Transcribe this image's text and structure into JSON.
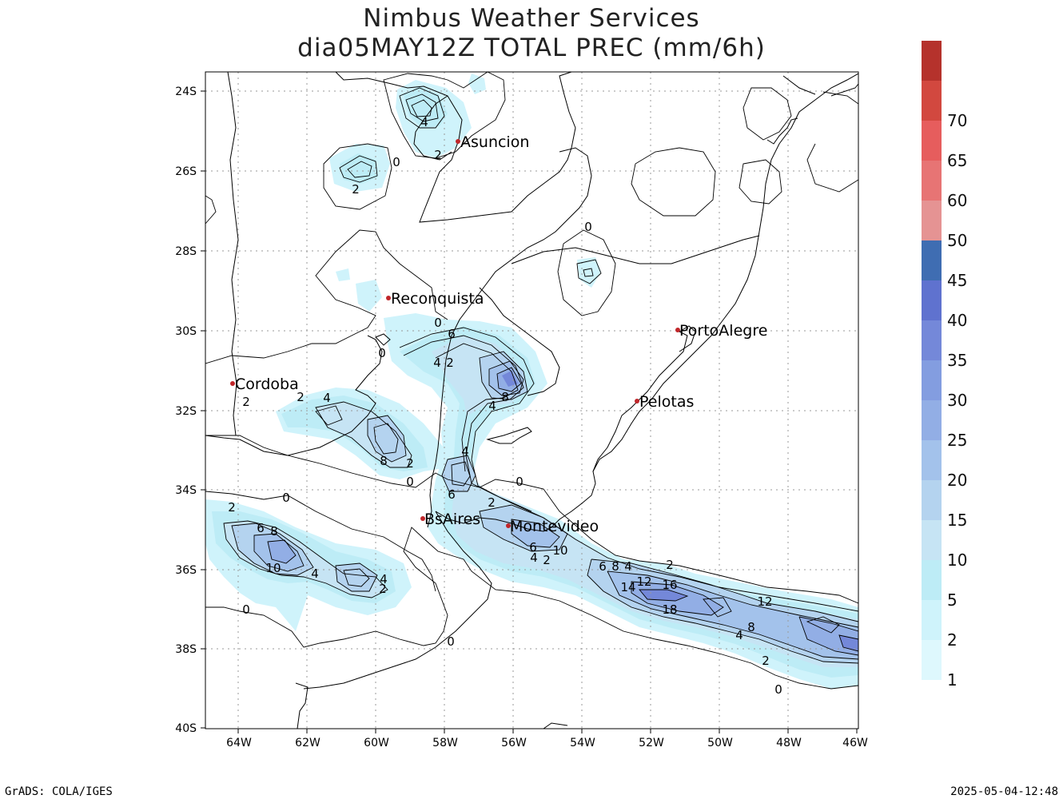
{
  "title": {
    "line1": "Nimbus Weather Services",
    "line2": "dia05MAY12Z TOTAL PREC (mm/6h)"
  },
  "map": {
    "lon_range": [
      -65,
      -46
    ],
    "lat_range": [
      -40,
      -23.6
    ],
    "x_ticks": [
      "64W",
      "62W",
      "60W",
      "58W",
      "56W",
      "54W",
      "52W",
      "50W",
      "48W",
      "46W"
    ],
    "y_ticks": [
      "24S",
      "26S",
      "28S",
      "30S",
      "32S",
      "34S",
      "36S",
      "38S",
      "40S"
    ],
    "grid": true
  },
  "cities": [
    {
      "name": "Asuncion",
      "lon": -57.6,
      "lat": -25.3
    },
    {
      "name": "Reconquista",
      "lon": -59.7,
      "lat": -29.15
    },
    {
      "name": "PortoAlegre",
      "lon": -51.2,
      "lat": -30.0
    },
    {
      "name": "Cordoba",
      "lon": -64.2,
      "lat": -31.35
    },
    {
      "name": "Pelotas",
      "lon": -52.35,
      "lat": -31.75
    },
    {
      "name": "BsAires",
      "lon": -58.5,
      "lat": -34.7
    },
    {
      "name": "Montevideo",
      "lon": -56.2,
      "lat": -34.9
    }
  ],
  "contour_labels": [
    "4",
    "2",
    "0",
    "2",
    "0",
    "6",
    "4",
    "2",
    "0",
    "8",
    "4",
    "2",
    "4",
    "2",
    "8",
    "2",
    "0",
    "4",
    "6",
    "2",
    "0",
    "2",
    "0",
    "6",
    "8",
    "10",
    "4",
    "4",
    "2",
    "0",
    "6",
    "4",
    "2",
    "10",
    "6",
    "8",
    "4",
    "12",
    "14",
    "16",
    "18",
    "2",
    "12",
    "8",
    "4",
    "2",
    "0",
    "0",
    "0"
  ],
  "colorbar": {
    "labels": [
      "1",
      "2",
      "5",
      "10",
      "15",
      "20",
      "25",
      "30",
      "35",
      "40",
      "45",
      "50",
      "60",
      "65",
      "70"
    ],
    "colors": [
      "#def8fd",
      "#cff3fb",
      "#bdecf6",
      "#c6e4f4",
      "#b4d3ef",
      "#a3c2eb",
      "#92aee5",
      "#839de0",
      "#7488d9",
      "#5f72cf",
      "#3f6db2",
      "#e59393",
      "#e77474",
      "#e65d5d",
      "#d2483f",
      "#b5322c"
    ]
  },
  "footer": {
    "left": "GrADS: COLA/IGES",
    "right": "2025-05-04-12:48"
  }
}
